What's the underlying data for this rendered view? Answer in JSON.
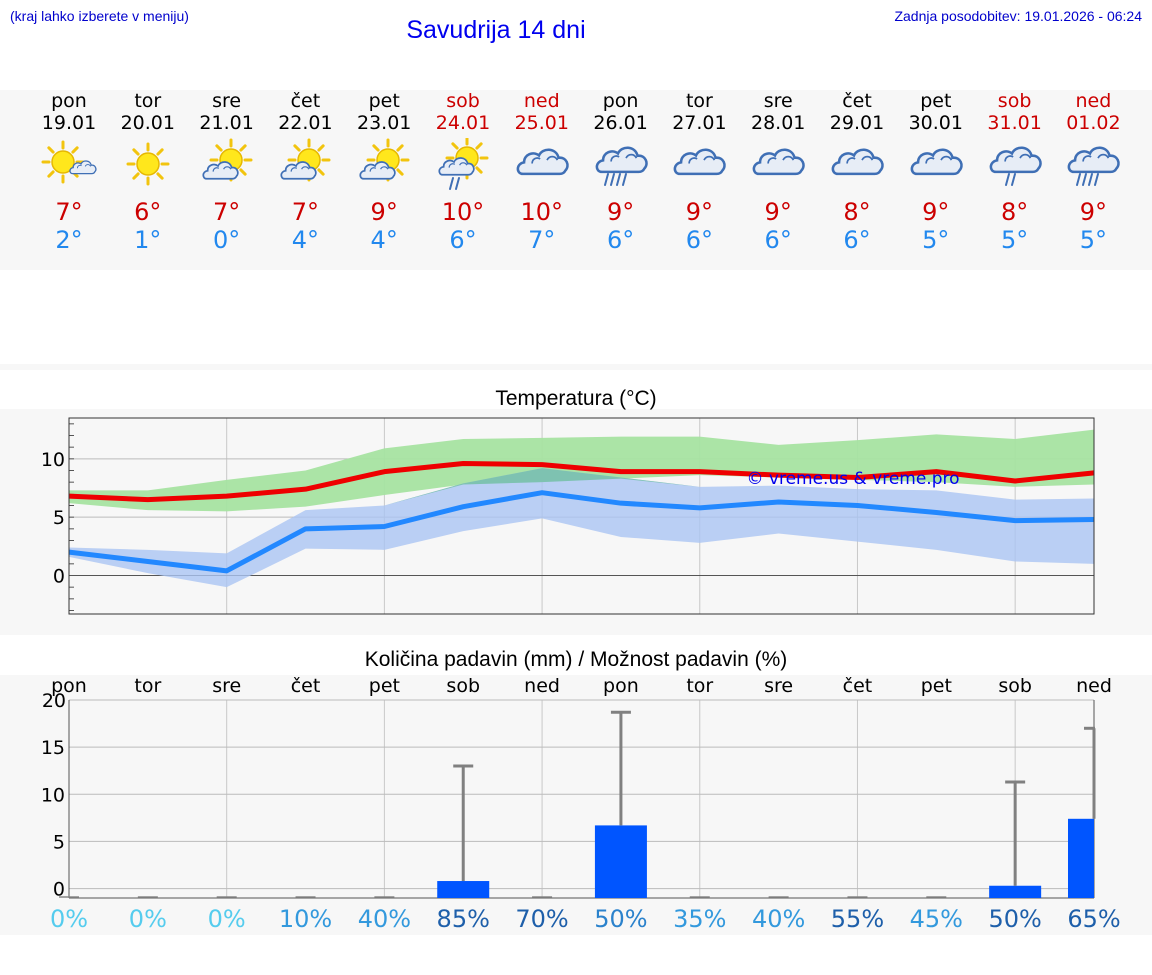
{
  "header": {
    "hint": "(kraj lahko izberete v meniju)",
    "title": "Savudrija 14 dni",
    "updated": "Zadnja posodobitev: 19.01.2026 - 06:24"
  },
  "days": [
    {
      "name": "pon",
      "date": "19.01",
      "weekend": false,
      "icon": "sun-cloud-icon",
      "tmax": "7°",
      "tmin": "2°"
    },
    {
      "name": "tor",
      "date": "20.01",
      "weekend": false,
      "icon": "sun-icon",
      "tmax": "6°",
      "tmin": "1°"
    },
    {
      "name": "sre",
      "date": "21.01",
      "weekend": false,
      "icon": "partly-cloudy-icon",
      "tmax": "7°",
      "tmin": "0°"
    },
    {
      "name": "čet",
      "date": "22.01",
      "weekend": false,
      "icon": "partly-cloudy-icon",
      "tmax": "7°",
      "tmin": "4°"
    },
    {
      "name": "pet",
      "date": "23.01",
      "weekend": false,
      "icon": "partly-cloudy-icon",
      "tmax": "9°",
      "tmin": "4°"
    },
    {
      "name": "sob",
      "date": "24.01",
      "weekend": true,
      "icon": "sun-cloud-rain-icon",
      "tmax": "10°",
      "tmin": "6°"
    },
    {
      "name": "ned",
      "date": "25.01",
      "weekend": true,
      "icon": "cloudy-icon",
      "tmax": "10°",
      "tmin": "7°"
    },
    {
      "name": "pon",
      "date": "26.01",
      "weekend": false,
      "icon": "heavy-rain-icon",
      "tmax": "9°",
      "tmin": "6°"
    },
    {
      "name": "tor",
      "date": "27.01",
      "weekend": false,
      "icon": "cloudy-icon",
      "tmax": "9°",
      "tmin": "6°"
    },
    {
      "name": "sre",
      "date": "28.01",
      "weekend": false,
      "icon": "cloudy-icon",
      "tmax": "9°",
      "tmin": "6°"
    },
    {
      "name": "čet",
      "date": "29.01",
      "weekend": false,
      "icon": "cloudy-icon",
      "tmax": "8°",
      "tmin": "6°"
    },
    {
      "name": "pet",
      "date": "30.01",
      "weekend": false,
      "icon": "cloudy-icon",
      "tmax": "9°",
      "tmin": "5°"
    },
    {
      "name": "sob",
      "date": "31.01",
      "weekend": true,
      "icon": "light-rain-icon",
      "tmax": "8°",
      "tmin": "5°"
    },
    {
      "name": "ned",
      "date": "01.02",
      "weekend": true,
      "icon": "heavy-rain-icon",
      "tmax": "9°",
      "tmin": "5°"
    }
  ],
  "chart_data": [
    {
      "type": "line",
      "title": "Temperatura (°C)",
      "watermark": "© vreme.us & vreme.pro",
      "ylim": [
        -3.3,
        13.5
      ],
      "yticks": [
        0,
        5,
        10
      ],
      "grid": true,
      "categories": [
        "pon",
        "tor",
        "sre",
        "čet",
        "pet",
        "sob",
        "ned",
        "pon",
        "tor",
        "sre",
        "čet",
        "pet",
        "sob",
        "ned"
      ],
      "series": [
        {
          "name": "max",
          "color": "#ee0000",
          "values": [
            6.8,
            6.5,
            6.8,
            7.4,
            8.9,
            9.6,
            9.5,
            8.9,
            8.9,
            8.6,
            8.4,
            8.9,
            8.1,
            8.8
          ]
        },
        {
          "name": "min",
          "color": "#2288ff",
          "values": [
            2.0,
            1.2,
            0.4,
            4.0,
            4.2,
            5.9,
            7.1,
            6.2,
            5.8,
            6.3,
            6.0,
            5.4,
            4.7,
            4.8
          ]
        }
      ],
      "bands": [
        {
          "name": "max-range",
          "color": "#a6e3a1",
          "low": [
            6.2,
            5.6,
            5.5,
            5.9,
            6.9,
            7.8,
            8.0,
            8.3,
            8.6,
            8.4,
            8.2,
            8.0,
            7.6,
            7.8
          ],
          "high": [
            7.3,
            7.3,
            8.2,
            9.0,
            10.9,
            11.7,
            11.8,
            11.9,
            11.9,
            11.2,
            11.6,
            12.1,
            11.7,
            12.5
          ]
        },
        {
          "name": "min-range",
          "color": "#aac4f3",
          "low": [
            1.6,
            0.2,
            -1.0,
            2.3,
            2.2,
            3.8,
            4.9,
            3.3,
            2.8,
            3.6,
            2.9,
            2.2,
            1.2,
            1.0
          ],
          "high": [
            2.4,
            2.2,
            1.9,
            5.6,
            6.0,
            7.9,
            9.2,
            8.4,
            7.6,
            7.7,
            7.4,
            7.3,
            6.5,
            6.6
          ]
        }
      ]
    },
    {
      "type": "bar",
      "title": "Količina padavin (mm) / Možnost padavin (%)",
      "ylim": [
        -1,
        20
      ],
      "yticks": [
        0,
        5,
        10,
        15,
        20
      ],
      "grid": true,
      "categories": [
        "pon",
        "tor",
        "sre",
        "čet",
        "pet",
        "sob",
        "ned",
        "pon",
        "tor",
        "sre",
        "čet",
        "pet",
        "sob",
        "ned"
      ],
      "values": [
        0,
        0,
        0,
        0,
        0,
        0.8,
        0,
        6.7,
        0,
        0,
        0,
        0,
        0.3,
        7.4
      ],
      "error_max": [
        0,
        0,
        0,
        0,
        0,
        13,
        0,
        18.7,
        0,
        0,
        0,
        0,
        11.3,
        17
      ],
      "probabilities": [
        "0%",
        "0%",
        "0%",
        "10%",
        "40%",
        "85%",
        "70%",
        "50%",
        "35%",
        "40%",
        "55%",
        "45%",
        "50%",
        "65%"
      ],
      "bar_color": "#0055ff"
    }
  ]
}
